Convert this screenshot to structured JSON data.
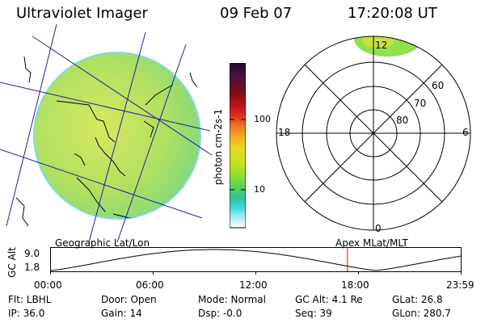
{
  "header": {
    "instrument": "Ultraviolet Imager",
    "date": "09 Feb 07",
    "time": "17:20:08 UT"
  },
  "colorbar": {
    "unit_label": "photon cm-2s-1",
    "tick_100": "100",
    "tick_10": "10",
    "colors_top_to_bottom": [
      "#1b1030",
      "#4a1040",
      "#7a1010",
      "#c01020",
      "#e03020",
      "#f07020",
      "#f0b020",
      "#e8d820",
      "#c8e020",
      "#90e030",
      "#50d060",
      "#30c0a0",
      "#40d8e0",
      "#a0e8f0",
      "#e0f0f8",
      "#ffffff"
    ]
  },
  "left_image": {
    "globe_color": "#b8e860",
    "grid_color": "#2020a0",
    "coast_color": "#000000"
  },
  "polar_plot": {
    "lat_labels": [
      "60",
      "70",
      "80"
    ],
    "mlt_labels": {
      "top": "12",
      "left": "18",
      "right": "6",
      "bottom": "0"
    }
  },
  "orbit_panel": {
    "left_title": "Geographic Lat/Lon",
    "right_title": "Apex  MLat/MLT",
    "y_axis_label": "GC Alt",
    "y_ticks": [
      "9.0",
      "1.8"
    ],
    "x_ticks": [
      "00:00",
      "06:00",
      "12:00",
      "18:00",
      "23:59"
    ],
    "current_time_marker_hour": 17.33,
    "marker_color": "#ff0000"
  },
  "status": {
    "row1": [
      {
        "label": "Flt: LBHL"
      },
      {
        "label": "Door: Open"
      },
      {
        "label": "Mode: Normal"
      },
      {
        "label": "GC Alt: 4.1 Re"
      },
      {
        "label": "GLat:  26.8"
      }
    ],
    "row2": [
      {
        "label": "IP: 36.0"
      },
      {
        "label": "Gain: 14"
      },
      {
        "label": "Dsp:   -0.0"
      },
      {
        "label": "Seq: 39"
      },
      {
        "label": "GLon: 280.7"
      }
    ]
  }
}
